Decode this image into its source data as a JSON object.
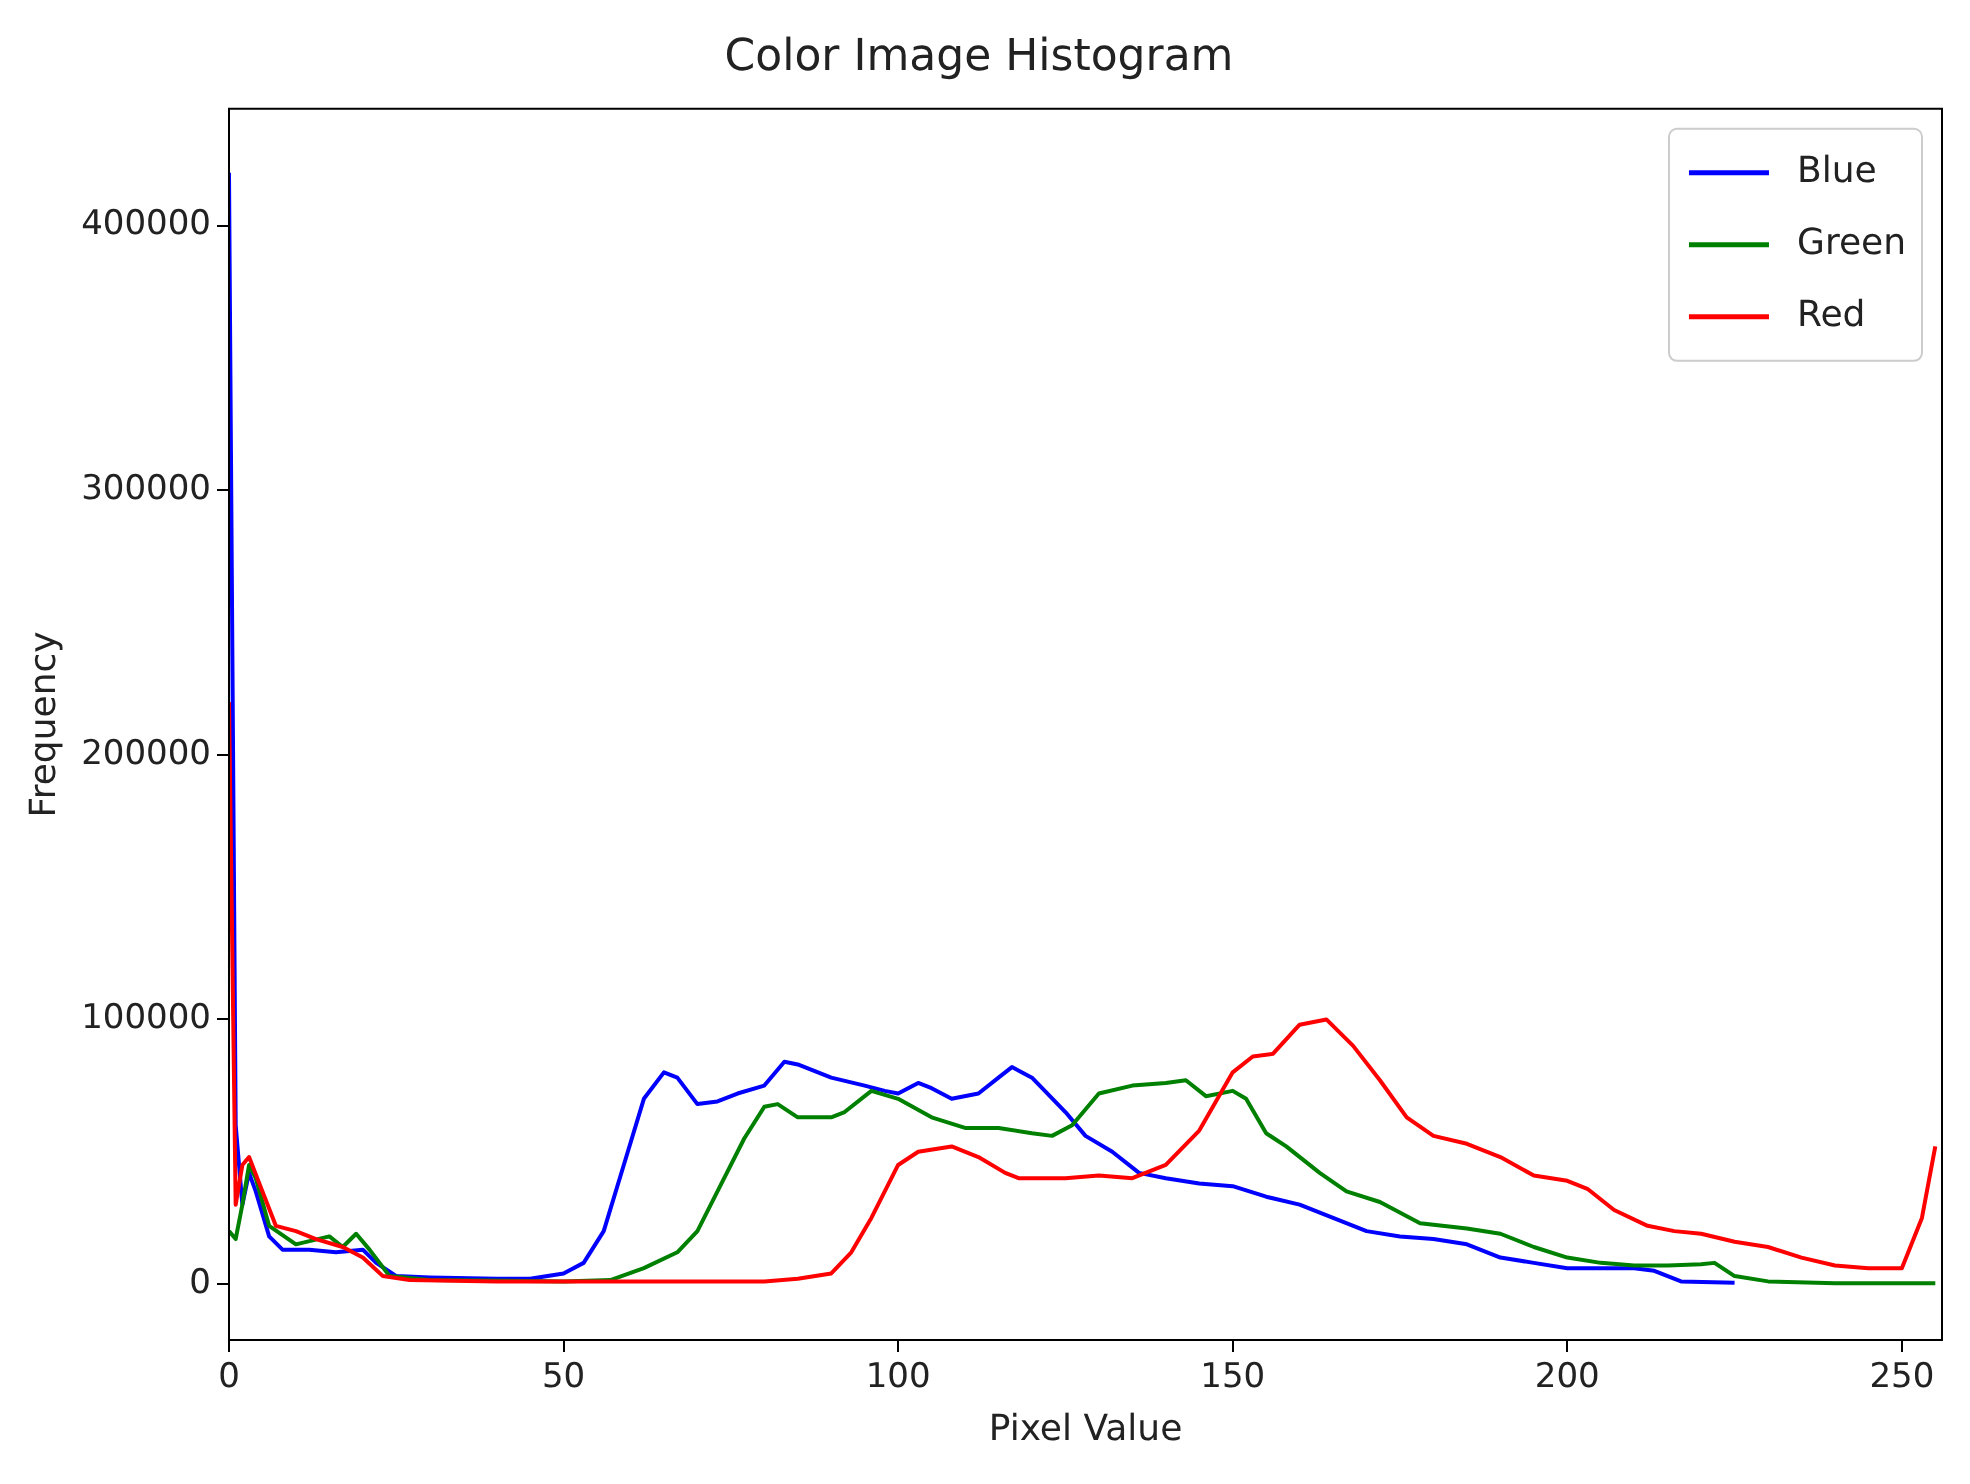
{
  "chart_data": {
    "type": "line",
    "title": "Color Image Histogram",
    "xlabel": "Pixel Value",
    "ylabel": "Frequency",
    "xlim": [
      0,
      256
    ],
    "xticks": [
      0,
      50,
      100,
      150,
      200,
      250
    ],
    "ylim": [
      -21150,
      444150
    ],
    "yticks": [
      0,
      100000,
      200000,
      300000,
      400000
    ],
    "grid": false,
    "legend": "top right",
    "marker": "none",
    "line_style": "solid",
    "series": [
      {
        "name": "Blue",
        "color": "#0000ff",
        "x": [
          0,
          1,
          2,
          3,
          4,
          6,
          8,
          12,
          16,
          20,
          22,
          25,
          30,
          40,
          45,
          50,
          53,
          56,
          59,
          62,
          65,
          67,
          70,
          73,
          76,
          80,
          83,
          85,
          90,
          95,
          98,
          100,
          103,
          105,
          108,
          112,
          115,
          117,
          120,
          125,
          128,
          132,
          136,
          140,
          145,
          150,
          155,
          160,
          165,
          170,
          175,
          180,
          185,
          190,
          195,
          200,
          210,
          213,
          217,
          225
        ],
        "values": [
          420000,
          60000,
          30000,
          42000,
          35000,
          18000,
          13000,
          13000,
          12000,
          13000,
          8000,
          3000,
          2500,
          2000,
          2000,
          4000,
          8000,
          20000,
          45000,
          70000,
          80000,
          78000,
          68000,
          69000,
          72000,
          75000,
          84000,
          83000,
          78000,
          75000,
          73000,
          72000,
          76000,
          74000,
          70000,
          72000,
          78000,
          82000,
          78000,
          65000,
          56000,
          50000,
          42000,
          40000,
          38000,
          37000,
          33000,
          30000,
          25000,
          20000,
          18000,
          17000,
          15000,
          10000,
          8000,
          6000,
          6000,
          5000,
          1000,
          500
        ]
      },
      {
        "name": "Green",
        "color": "#008000",
        "x": [
          0,
          1,
          2,
          3,
          4,
          6,
          10,
          15,
          17,
          19,
          21,
          24,
          30,
          50,
          57,
          62,
          67,
          70,
          73,
          77,
          80,
          82,
          85,
          90,
          92,
          96,
          100,
          105,
          110,
          115,
          120,
          123,
          126,
          130,
          135,
          140,
          143,
          146,
          150,
          152,
          155,
          158,
          163,
          167,
          172,
          178,
          185,
          190,
          195,
          200,
          205,
          210,
          215,
          220,
          222,
          225,
          230,
          240,
          255
        ],
        "values": [
          20000,
          17000,
          30000,
          45000,
          40000,
          22000,
          15000,
          18000,
          14000,
          19000,
          13000,
          3000,
          1500,
          1000,
          1500,
          6000,
          12000,
          20000,
          35000,
          55000,
          67000,
          68000,
          63000,
          63000,
          65000,
          73000,
          70000,
          63000,
          59000,
          59000,
          57000,
          56000,
          60000,
          72000,
          75000,
          76000,
          77000,
          71000,
          73000,
          70000,
          57000,
          52000,
          42000,
          35000,
          31000,
          23000,
          21000,
          19000,
          14000,
          10000,
          8000,
          7000,
          7000,
          7500,
          8000,
          3000,
          1000,
          300,
          300
        ]
      },
      {
        "name": "Red",
        "color": "#ff0000",
        "x": [
          0,
          1,
          2,
          3,
          5,
          7,
          10,
          13,
          17,
          20,
          23,
          27,
          40,
          60,
          80,
          85,
          90,
          93,
          96,
          100,
          103,
          108,
          112,
          116,
          118,
          125,
          130,
          135,
          140,
          145,
          150,
          153,
          156,
          160,
          164,
          168,
          172,
          176,
          180,
          185,
          190,
          195,
          200,
          203,
          207,
          212,
          216,
          220,
          225,
          230,
          235,
          240,
          245,
          250,
          253,
          255
        ],
        "values": [
          220000,
          30000,
          45000,
          48000,
          35000,
          22000,
          20000,
          17000,
          14000,
          10000,
          3000,
          1500,
          1000,
          1000,
          1000,
          2000,
          4000,
          12000,
          25000,
          45000,
          50000,
          52000,
          48000,
          42000,
          40000,
          40000,
          41000,
          40000,
          45000,
          58000,
          80000,
          86000,
          87000,
          98000,
          100000,
          90000,
          77000,
          63000,
          56000,
          53000,
          48000,
          41000,
          39000,
          36000,
          28000,
          22000,
          20000,
          19000,
          16000,
          14000,
          10000,
          7000,
          6000,
          6000,
          25000,
          52000
        ]
      }
    ]
  }
}
